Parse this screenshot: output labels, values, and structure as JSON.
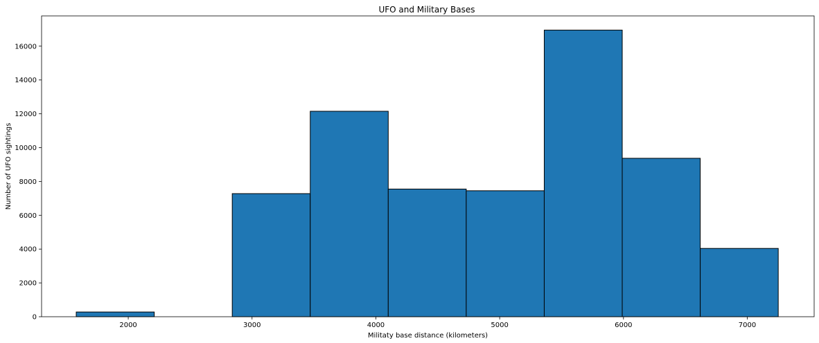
{
  "chart_data": {
    "type": "bar",
    "title": "UFO and Military Bases",
    "xlabel": "Militaty base distance (kilometers)",
    "ylabel": "Number of UFO sightings",
    "bins": [
      {
        "x0": 1580,
        "x1": 2210,
        "value": 280
      },
      {
        "x0": 2210,
        "x1": 2840,
        "value": 0
      },
      {
        "x0": 2840,
        "x1": 3470,
        "value": 7280
      },
      {
        "x0": 3470,
        "x1": 4100,
        "value": 12150
      },
      {
        "x0": 4100,
        "x1": 4730,
        "value": 7550
      },
      {
        "x0": 4730,
        "x1": 5360,
        "value": 7450
      },
      {
        "x0": 5360,
        "x1": 5990,
        "value": 16950
      },
      {
        "x0": 5990,
        "x1": 6620,
        "value": 9370
      },
      {
        "x0": 6620,
        "x1": 7250,
        "value": 4040
      }
    ],
    "xlim": [
      1300,
      7540
    ],
    "ylim": [
      0,
      17790
    ],
    "xticks": [
      2000,
      3000,
      4000,
      5000,
      6000,
      7000
    ],
    "yticks": [
      0,
      2000,
      4000,
      6000,
      8000,
      10000,
      12000,
      14000,
      16000
    ],
    "colors": {
      "bar_fill": "#1f77b4",
      "bar_edge": "#000000",
      "axes": "#000000",
      "background": "#ffffff"
    },
    "grid": false,
    "legend": "none"
  }
}
